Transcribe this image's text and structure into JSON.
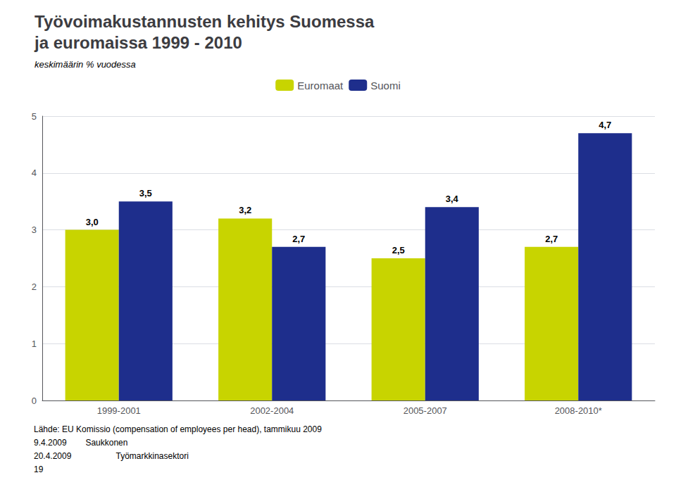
{
  "chart_data": {
    "type": "bar",
    "title": "Työvoimakustannusten kehitys Suomessa\nja euromaissa 1999 - 2010",
    "subtitle": "keskimäärin % vuodessa",
    "categories": [
      "1999-2001",
      "2002-2004",
      "2005-2007",
      "2008-2010*"
    ],
    "series": [
      {
        "name": "Euromaat",
        "color": "#c8d400",
        "values": [
          3.0,
          3.2,
          2.5,
          2.7
        ],
        "value_labels": [
          "3,0",
          "3,2",
          "2,5",
          "2,7"
        ]
      },
      {
        "name": "Suomi",
        "color": "#1e2e8c",
        "values": [
          3.5,
          2.7,
          3.4,
          4.7
        ],
        "value_labels": [
          "3,5",
          "2,7",
          "3,4",
          "4,7"
        ]
      }
    ],
    "ylim": [
      0,
      5
    ],
    "yticks": [
      0,
      1,
      2,
      3,
      4,
      5
    ],
    "grid": true,
    "legend": "top",
    "data_labels": true,
    "annotations": [
      "Lähde: EU Komissio (compensation of employees per head), tammikuu 2009",
      "9.4.2009        Saukkonen",
      "20.4.2009                   Työmarkkinasektori",
      "19"
    ]
  }
}
